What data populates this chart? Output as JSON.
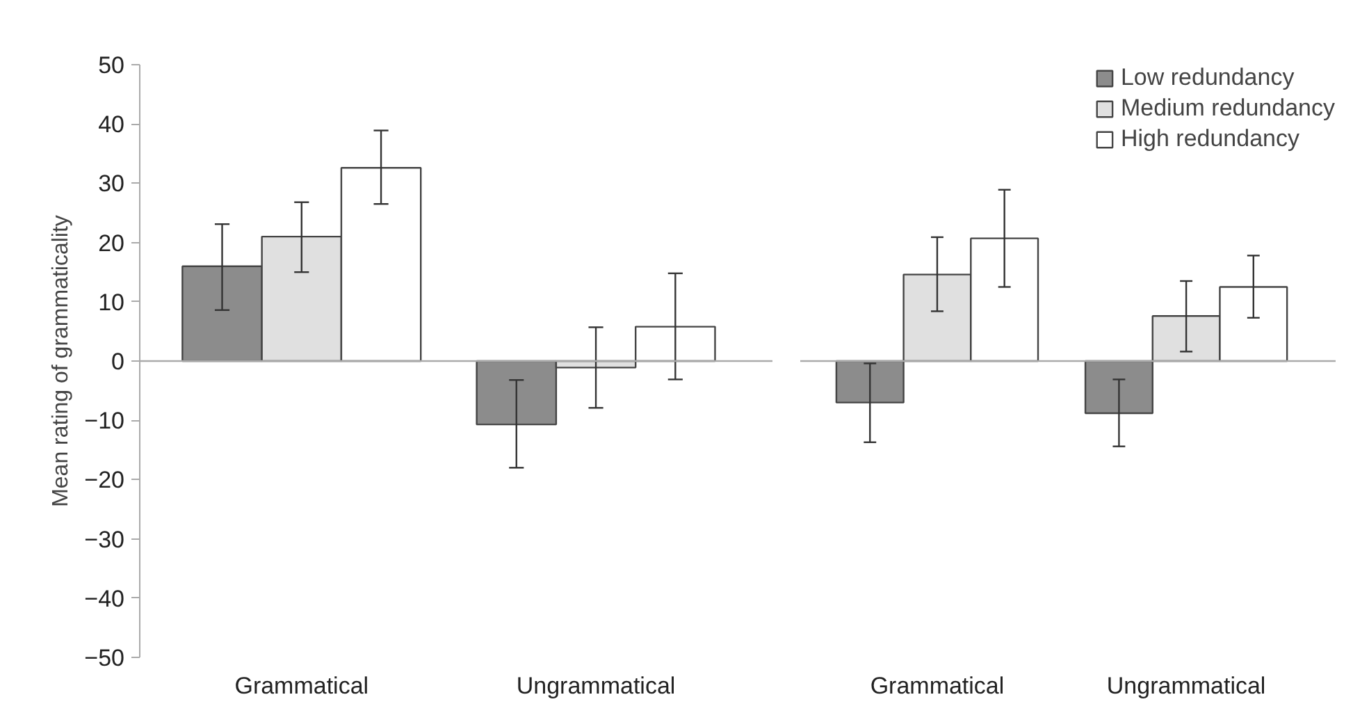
{
  "chart_data": [
    {
      "type": "bar",
      "ylabel": "Mean rating of grammaticality",
      "categories": [
        "Grammatical",
        "Ungrammatical"
      ],
      "ylim": [
        -50,
        50
      ],
      "yticks": [
        -50,
        -40,
        -30,
        -20,
        -10,
        0,
        10,
        20,
        30,
        40,
        50
      ],
      "ref_lines": [
        {
          "axis": "y",
          "value": 0,
          "color": "#aaaaaa"
        }
      ],
      "series": [
        {
          "color": "#8c8c8c",
          "values": [
            16,
            -10.7
          ],
          "errors": [
            [
              8.6,
              23.1
            ],
            [
              -18,
              -3.2
            ]
          ]
        },
        {
          "color": "#e0e0e0",
          "values": [
            21,
            -1.1
          ],
          "errors": [
            [
              15,
              26.8
            ],
            [
              -7.9,
              5.7
            ]
          ]
        },
        {
          "color": "#ffffff",
          "values": [
            32.6,
            5.8
          ],
          "errors": [
            [
              26.5,
              38.9
            ],
            [
              -3.1,
              14.8
            ]
          ]
        }
      ]
    },
    {
      "type": "bar",
      "categories": [
        "Grammatical",
        "Ungrammatical"
      ],
      "ylim": [
        -50,
        50
      ],
      "tick_labels": "x",
      "legend": "top right",
      "ref_lines": [
        {
          "axis": "y",
          "value": 0,
          "color": "#aaaaaa"
        }
      ],
      "series": [
        {
          "name": "Low redundancy",
          "color": "#8c8c8c",
          "values": [
            -7,
            -8.8
          ],
          "errors": [
            [
              -13.7,
              -0.4
            ],
            [
              -14.4,
              -3.1
            ]
          ]
        },
        {
          "name": "Medium redundancy",
          "color": "#e0e0e0",
          "values": [
            14.6,
            7.6
          ],
          "errors": [
            [
              8.4,
              20.9
            ],
            [
              1.6,
              13.5
            ]
          ]
        },
        {
          "name": "High redundancy",
          "color": "#ffffff",
          "values": [
            20.7,
            12.5
          ],
          "errors": [
            [
              12.5,
              28.9
            ],
            [
              7.3,
              17.8
            ]
          ]
        }
      ]
    }
  ]
}
